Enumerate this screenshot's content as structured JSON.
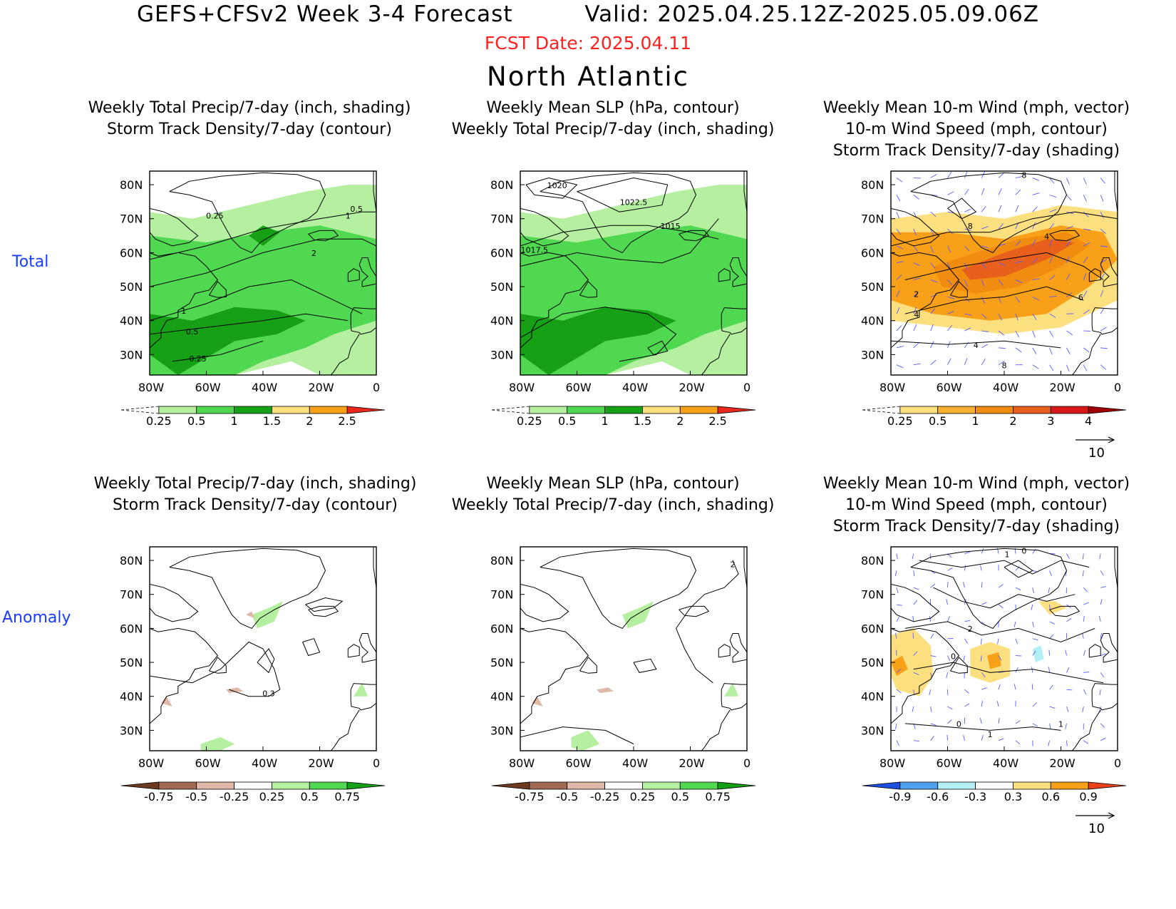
{
  "header": {
    "title_left": "GEFS+CFSv2 Week 3-4 Forecast",
    "title_right": "Valid: 2025.04.25.12Z-2025.05.09.06Z",
    "fcst_date": "FCST Date: 2025.04.11",
    "region": "North Atlantic"
  },
  "rows": {
    "total": "Total",
    "anomaly": "Anomaly"
  },
  "panels": {
    "p1": {
      "line1": "",
      "line2": "Weekly Total Precip/7-day (inch, shading)",
      "line3": "Storm Track Density/7-day (contour)"
    },
    "p2": {
      "line1": "",
      "line2": "Weekly Mean SLP (hPa, contour)",
      "line3": "Weekly Total Precip/7-day (inch, shading)"
    },
    "p3": {
      "line1": "Weekly Mean 10-m Wind (mph, vector)",
      "line2": "10-m Wind Speed (mph, contour)",
      "line3": "Storm Track Density/7-day (shading)"
    }
  },
  "axes": {
    "lat_labels": [
      "80N",
      "70N",
      "60N",
      "50N",
      "40N",
      "30N"
    ],
    "lon_labels": [
      "80W",
      "60W",
      "40W",
      "20W",
      "0"
    ]
  },
  "colorbars": {
    "total_precip": {
      "labels": [
        "0.25",
        "0.5",
        "1",
        "1.5",
        "2",
        "2.5"
      ],
      "colors": [
        "#ffffff",
        "#b4f0a0",
        "#50d850",
        "#16a016",
        "#fce080",
        "#f8a018",
        "#e8281c"
      ]
    },
    "total_storm": {
      "labels": [
        "0.25",
        "0.5",
        "1",
        "2",
        "3",
        "4"
      ],
      "colors": [
        "#ffffff",
        "#fce080",
        "#f8b030",
        "#f08c10",
        "#e8601c",
        "#d81818",
        "#a00000"
      ]
    },
    "anom_precip": {
      "labels": [
        "-0.75",
        "-0.5",
        "-0.25",
        "0.25",
        "0.5",
        "0.75"
      ],
      "colors": [
        "#6e3a1e",
        "#a06a50",
        "#e0b8a8",
        "#ffffff",
        "#b4f0a0",
        "#50d850",
        "#16a016"
      ]
    },
    "anom_storm": {
      "labels": [
        "-0.9",
        "-0.6",
        "-0.3",
        "0.3",
        "0.6",
        "0.9"
      ],
      "colors": [
        "#1e50e0",
        "#50a0f0",
        "#b4f0f8",
        "#ffffff",
        "#fce080",
        "#f8a018",
        "#e8401c"
      ]
    }
  },
  "contour_labels": {
    "p1_total": [
      "0.25",
      "0.5",
      "1",
      "2",
      "1",
      "0.5",
      "0.25"
    ],
    "p2_total": [
      "1020",
      "1022.5",
      "1015",
      "1017.5"
    ],
    "p3_total": [
      "8",
      "8",
      "4",
      "2",
      "4",
      "6",
      "4",
      "8"
    ],
    "p1_anom": [
      "0.3"
    ],
    "p2_anom": [
      "2"
    ],
    "p3_anom": [
      "0",
      "1",
      "2",
      "0",
      "0",
      "1",
      "1"
    ]
  },
  "vector_ref": "10"
}
